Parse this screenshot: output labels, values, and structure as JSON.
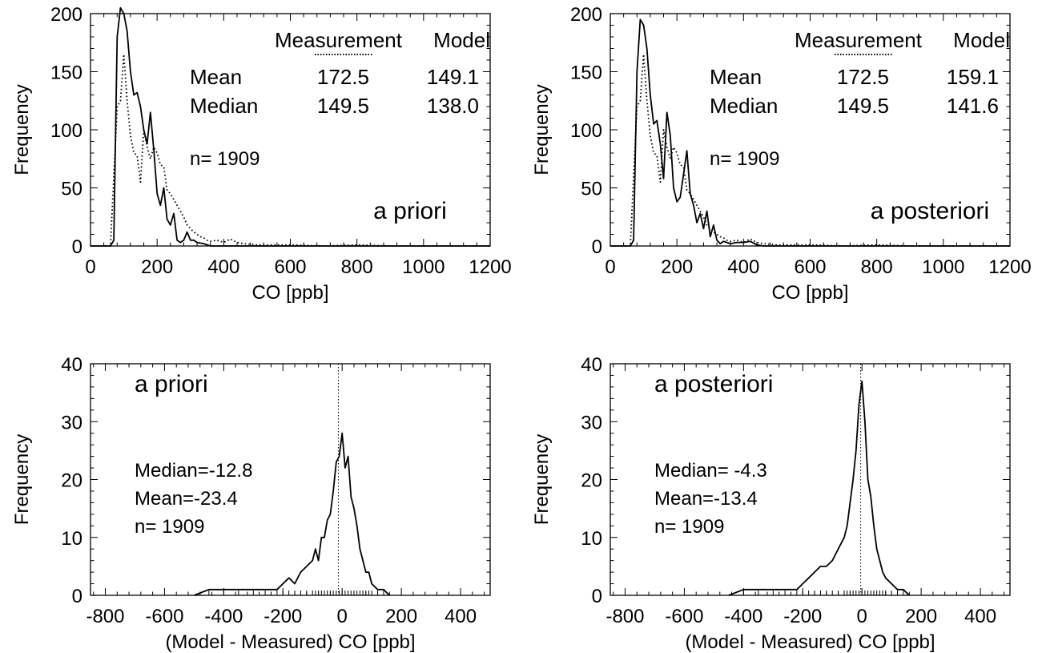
{
  "colors": {
    "axis": "#000000",
    "measurement_line": "#000000",
    "model_line": "#000000",
    "background": "#ffffff"
  },
  "chart_data": [
    {
      "id": "top-left",
      "type": "line",
      "xlabel": "CO [ppb]",
      "ylabel": "Frequency",
      "xlim": [
        0,
        1200
      ],
      "ylim": [
        0,
        200
      ],
      "x_ticks": [
        0,
        200,
        400,
        600,
        800,
        1000,
        1200
      ],
      "y_ticks": [
        0,
        50,
        100,
        150,
        200
      ],
      "label": "a priori",
      "stats": {
        "header": [
          "",
          "Measurement",
          "Model"
        ],
        "rows": [
          [
            "Mean",
            "172.5",
            "149.1"
          ],
          [
            "Median",
            "149.5",
            "138.0"
          ]
        ],
        "n": "n= 1909"
      },
      "series": [
        {
          "name": "Measurement",
          "style": "dotted",
          "x": [
            0,
            30,
            60,
            70,
            80,
            90,
            100,
            110,
            120,
            130,
            140,
            150,
            160,
            170,
            180,
            190,
            200,
            210,
            220,
            230,
            240,
            250,
            260,
            270,
            280,
            290,
            300,
            310,
            320,
            330,
            340,
            350,
            360,
            380,
            400,
            420,
            440,
            460,
            500,
            600,
            700,
            800,
            900,
            1000,
            1200
          ],
          "values": [
            0,
            0,
            0,
            60,
            120,
            125,
            165,
            125,
            95,
            80,
            78,
            55,
            100,
            85,
            75,
            85,
            80,
            70,
            68,
            48,
            45,
            40,
            35,
            30,
            25,
            18,
            15,
            12,
            10,
            8,
            7,
            5,
            4,
            5,
            3,
            6,
            3,
            2,
            1,
            1,
            0,
            1,
            0,
            0,
            0
          ]
        },
        {
          "name": "Model",
          "style": "solid",
          "x": [
            0,
            40,
            60,
            70,
            80,
            90,
            100,
            110,
            120,
            130,
            140,
            150,
            160,
            170,
            180,
            190,
            200,
            210,
            220,
            230,
            240,
            250,
            260,
            270,
            280,
            290,
            300,
            310,
            320,
            340,
            360,
            400,
            1200
          ],
          "values": [
            0,
            0,
            0,
            5,
            180,
            205,
            200,
            185,
            150,
            130,
            132,
            120,
            100,
            88,
            115,
            83,
            45,
            35,
            50,
            23,
            18,
            28,
            5,
            3,
            5,
            12,
            5,
            5,
            3,
            2,
            0,
            0,
            0
          ]
        }
      ]
    },
    {
      "id": "top-right",
      "type": "line",
      "xlabel": "CO [ppb]",
      "ylabel": "Frequency",
      "xlim": [
        0,
        1200
      ],
      "ylim": [
        0,
        200
      ],
      "x_ticks": [
        0,
        200,
        400,
        600,
        800,
        1000,
        1200
      ],
      "y_ticks": [
        0,
        50,
        100,
        150,
        200
      ],
      "label": "a posteriori",
      "stats": {
        "header": [
          "",
          "Measurement",
          "Model"
        ],
        "rows": [
          [
            "Mean",
            "172.5",
            "159.1"
          ],
          [
            "Median",
            "149.5",
            "141.6"
          ]
        ],
        "n": "n= 1909"
      },
      "series": [
        {
          "name": "Measurement",
          "style": "dotted",
          "x": [
            0,
            30,
            60,
            70,
            80,
            90,
            100,
            110,
            120,
            130,
            140,
            150,
            160,
            170,
            180,
            190,
            200,
            210,
            220,
            230,
            240,
            250,
            260,
            270,
            280,
            290,
            300,
            310,
            320,
            330,
            340,
            350,
            360,
            380,
            400,
            420,
            440,
            460,
            500,
            600,
            700,
            800,
            900,
            1000,
            1200
          ],
          "values": [
            0,
            0,
            0,
            60,
            120,
            125,
            165,
            125,
            95,
            80,
            78,
            55,
            100,
            85,
            75,
            85,
            80,
            70,
            68,
            48,
            45,
            40,
            35,
            30,
            25,
            18,
            15,
            12,
            10,
            8,
            7,
            5,
            4,
            5,
            3,
            6,
            3,
            2,
            1,
            1,
            0,
            1,
            0,
            0,
            0
          ]
        },
        {
          "name": "Model",
          "style": "solid",
          "x": [
            0,
            40,
            60,
            70,
            80,
            90,
            100,
            110,
            120,
            130,
            140,
            150,
            160,
            170,
            180,
            190,
            200,
            210,
            220,
            230,
            240,
            250,
            260,
            270,
            280,
            290,
            300,
            310,
            320,
            330,
            340,
            360,
            380,
            400,
            420,
            440,
            460,
            1200
          ],
          "values": [
            0,
            0,
            0,
            5,
            150,
            195,
            190,
            170,
            130,
            105,
            108,
            88,
            58,
            115,
            95,
            50,
            38,
            42,
            62,
            82,
            45,
            35,
            20,
            28,
            15,
            30,
            8,
            18,
            5,
            2,
            4,
            2,
            3,
            3,
            4,
            1,
            0,
            0
          ]
        }
      ]
    },
    {
      "id": "bottom-left",
      "type": "line",
      "xlabel": "(Model - Measured) CO [ppb]",
      "ylabel": "Frequency",
      "xlim": [
        -850,
        500
      ],
      "ylim": [
        0,
        40
      ],
      "x_ticks": [
        -800,
        -600,
        -400,
        -200,
        0,
        200,
        400
      ],
      "y_ticks": [
        0,
        10,
        20,
        30,
        40
      ],
      "label": "a priori",
      "stats_lines": [
        "Median=-12.8",
        "Mean=-23.4",
        "n= 1909"
      ],
      "reference_x": -12.8,
      "series": [
        {
          "name": "Model - Measured",
          "style": "solid",
          "x": [
            -500,
            -450,
            -400,
            -350,
            -300,
            -260,
            -220,
            -200,
            -180,
            -160,
            -140,
            -120,
            -100,
            -90,
            -80,
            -70,
            -60,
            -50,
            -40,
            -30,
            -20,
            -10,
            0,
            10,
            20,
            30,
            40,
            50,
            60,
            70,
            80,
            90,
            100,
            120,
            140,
            160
          ],
          "values": [
            0,
            1,
            1,
            1,
            1,
            1,
            1,
            2,
            3,
            2,
            4,
            5,
            6,
            8,
            6,
            10,
            10,
            13,
            14,
            18,
            23,
            24,
            28,
            22,
            24,
            17,
            15,
            12,
            8,
            6,
            4,
            4,
            2,
            1,
            1,
            0
          ]
        }
      ]
    },
    {
      "id": "bottom-right",
      "type": "line",
      "xlabel": "(Model - Measured) CO [ppb]",
      "ylabel": "Frequency",
      "xlim": [
        -850,
        500
      ],
      "ylim": [
        0,
        40
      ],
      "x_ticks": [
        -800,
        -600,
        -400,
        -200,
        0,
        200,
        400
      ],
      "y_ticks": [
        0,
        10,
        20,
        30,
        40
      ],
      "label": "a posteriori",
      "stats_lines": [
        "Median= -4.3",
        "Mean=-13.4",
        "n= 1909"
      ],
      "reference_x": -4.3,
      "series": [
        {
          "name": "Model - Measured",
          "style": "solid",
          "x": [
            -450,
            -400,
            -350,
            -300,
            -260,
            -220,
            -200,
            -180,
            -160,
            -140,
            -120,
            -100,
            -80,
            -60,
            -50,
            -40,
            -30,
            -20,
            -10,
            0,
            10,
            20,
            30,
            40,
            50,
            60,
            70,
            80,
            100,
            120,
            140,
            160
          ],
          "values": [
            0,
            1,
            1,
            1,
            1,
            1,
            2,
            3,
            4,
            5,
            5,
            6,
            8,
            10,
            12,
            16,
            20,
            25,
            33,
            37,
            30,
            20,
            17,
            12,
            8,
            6,
            4,
            3,
            2,
            1,
            1,
            0
          ]
        }
      ]
    }
  ]
}
